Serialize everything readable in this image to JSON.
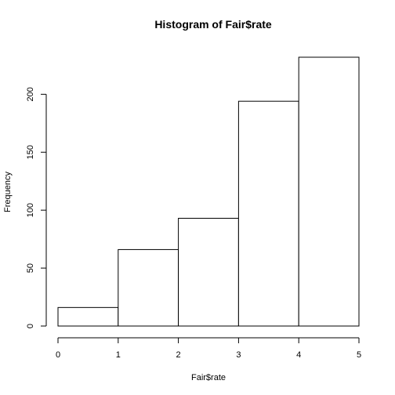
{
  "chart_data": {
    "type": "bar",
    "title": "Histogram of Fair$rate",
    "xlabel": "Fair$rate",
    "ylabel": "Frequency",
    "bins": [
      {
        "start": 0,
        "end": 1,
        "count": 16
      },
      {
        "start": 1,
        "end": 2,
        "count": 66
      },
      {
        "start": 2,
        "end": 3,
        "count": 93
      },
      {
        "start": 3,
        "end": 4,
        "count": 194
      },
      {
        "start": 4,
        "end": 5,
        "count": 232
      }
    ],
    "xlim": [
      0,
      5
    ],
    "ylim": [
      0,
      232
    ],
    "x_ticks": [
      0,
      1,
      2,
      3,
      4,
      5
    ],
    "x_tick_labels": [
      "0",
      "1",
      "2",
      "3",
      "4",
      "5"
    ],
    "y_ticks": [
      0,
      50,
      100,
      150,
      200
    ],
    "y_tick_labels": [
      "0",
      "50",
      "100",
      "150",
      "200"
    ],
    "grid": false,
    "bar_fill": "#ffffff",
    "bar_stroke": "#000000"
  }
}
